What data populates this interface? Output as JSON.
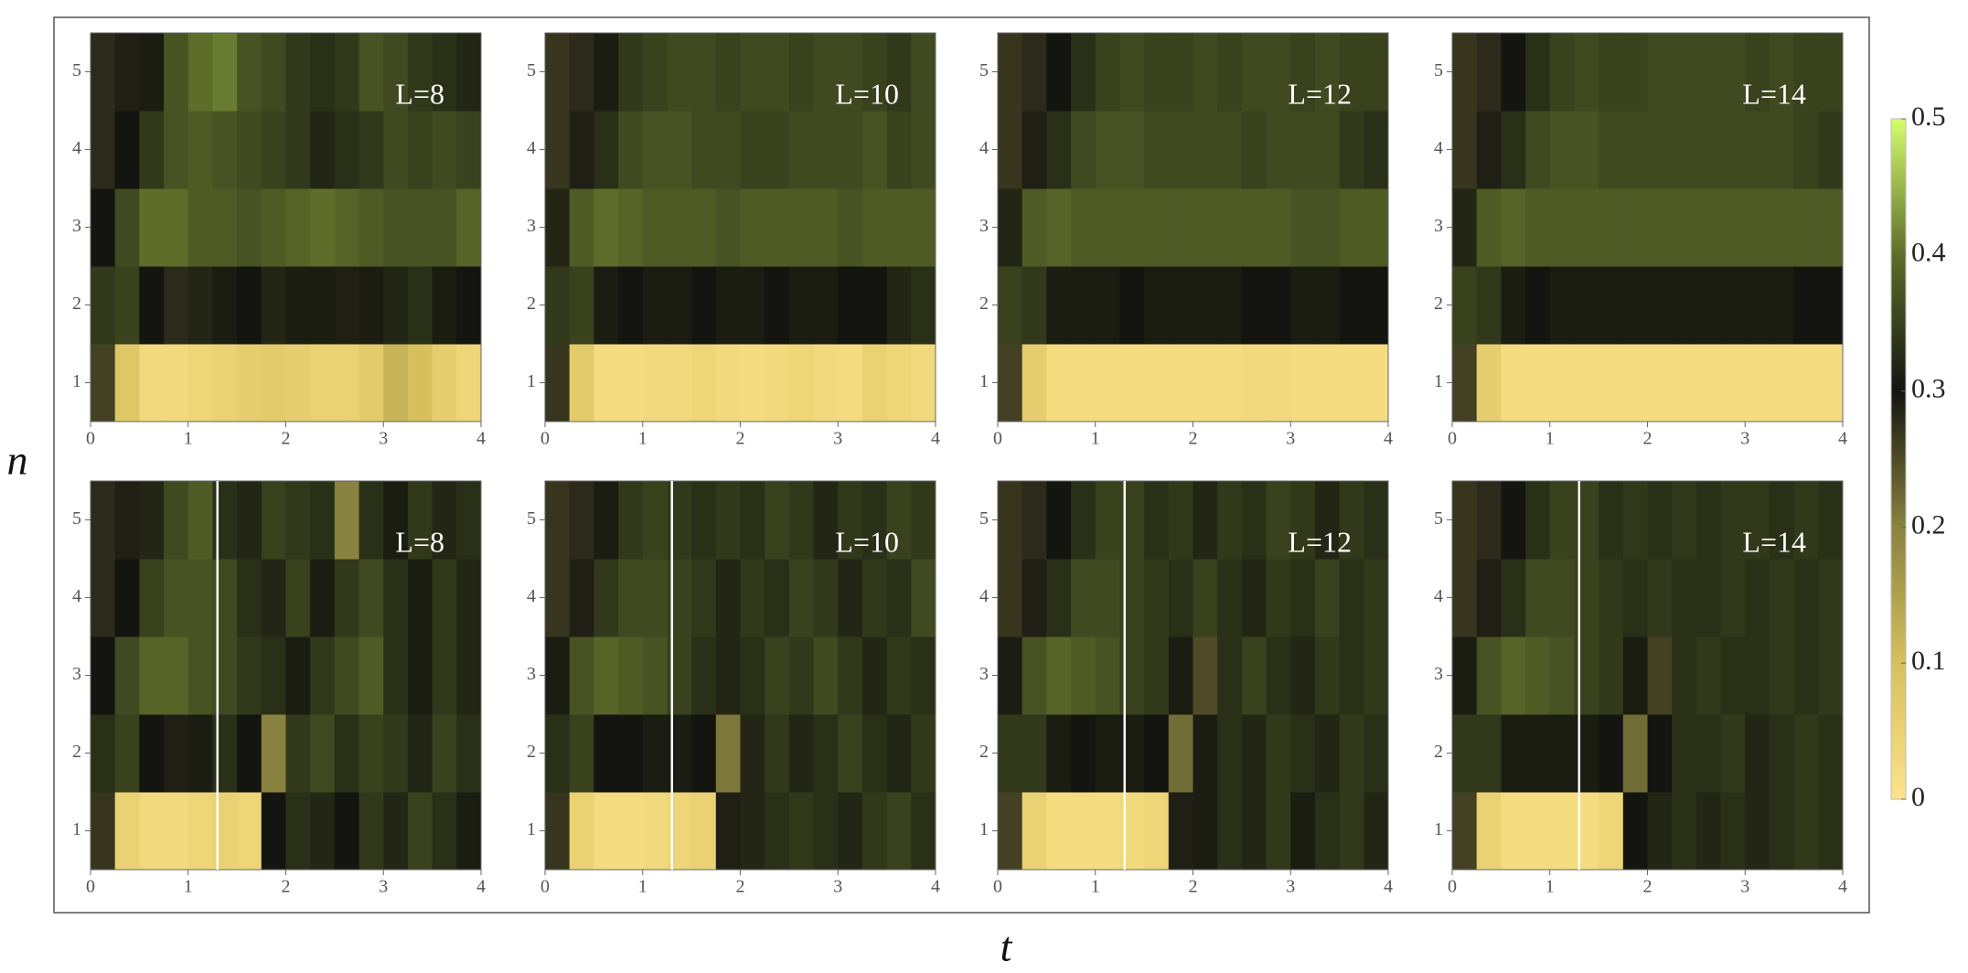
{
  "chart_data": {
    "type": "heatmap",
    "x_label": "t",
    "y_label": "n",
    "x": [
      0,
      0.25,
      0.5,
      0.75,
      1,
      1.25,
      1.5,
      1.75,
      2,
      2.25,
      2.5,
      2.75,
      3,
      3.25,
      3.5,
      3.75,
      4
    ],
    "y": [
      1,
      2,
      3,
      4,
      5
    ],
    "xlim": [
      0,
      4
    ],
    "xticks": [
      0,
      1,
      2,
      3,
      4
    ],
    "ylim": [
      0.5,
      5.5
    ],
    "yticks": [
      1,
      2,
      3,
      4,
      5
    ],
    "colorbar": {
      "zlim": [
        0,
        0.5
      ],
      "ticks": [
        0,
        0.1,
        0.2,
        0.3,
        0.4,
        0.5
      ],
      "colors": [
        "#fde38a",
        "#d6c05e",
        "#8a8240",
        "#141410",
        "#5e6d2a",
        "#d4ff6e"
      ]
    },
    "panels": [
      {
        "label": "L=8",
        "z": [
          [
            0.26,
            0.08,
            0.03,
            0.03,
            0.04,
            0.05,
            0.06,
            0.07,
            0.06,
            0.05,
            0.05,
            0.07,
            0.12,
            0.1,
            0.06,
            0.04
          ],
          [
            0.34,
            0.35,
            0.3,
            0.28,
            0.32,
            0.31,
            0.3,
            0.32,
            0.31,
            0.31,
            0.29,
            0.31,
            0.32,
            0.33,
            0.31,
            0.3
          ],
          [
            0.3,
            0.36,
            0.4,
            0.4,
            0.38,
            0.38,
            0.37,
            0.38,
            0.39,
            0.4,
            0.39,
            0.38,
            0.37,
            0.37,
            0.37,
            0.39
          ],
          [
            0.28,
            0.3,
            0.34,
            0.37,
            0.38,
            0.37,
            0.36,
            0.35,
            0.34,
            0.32,
            0.33,
            0.34,
            0.36,
            0.35,
            0.36,
            0.35
          ],
          [
            0.28,
            0.29,
            0.31,
            0.37,
            0.4,
            0.41,
            0.37,
            0.36,
            0.34,
            0.33,
            0.34,
            0.37,
            0.36,
            0.34,
            0.33,
            0.32
          ]
        ]
      },
      {
        "label": "L=10",
        "z": [
          [
            0.27,
            0.07,
            0.02,
            0.02,
            0.03,
            0.03,
            0.04,
            0.03,
            0.02,
            0.03,
            0.04,
            0.03,
            0.02,
            0.05,
            0.04,
            0.03
          ],
          [
            0.34,
            0.35,
            0.31,
            0.3,
            0.31,
            0.31,
            0.3,
            0.31,
            0.31,
            0.3,
            0.31,
            0.31,
            0.3,
            0.3,
            0.32,
            0.33
          ],
          [
            0.32,
            0.38,
            0.4,
            0.39,
            0.38,
            0.38,
            0.38,
            0.37,
            0.38,
            0.38,
            0.38,
            0.38,
            0.37,
            0.38,
            0.38,
            0.38
          ],
          [
            0.27,
            0.29,
            0.33,
            0.36,
            0.37,
            0.37,
            0.36,
            0.36,
            0.35,
            0.35,
            0.36,
            0.36,
            0.36,
            0.37,
            0.35,
            0.36
          ],
          [
            0.27,
            0.28,
            0.31,
            0.34,
            0.35,
            0.36,
            0.36,
            0.35,
            0.36,
            0.36,
            0.35,
            0.36,
            0.36,
            0.35,
            0.34,
            0.36
          ]
        ]
      },
      {
        "label": "L=12",
        "z": [
          [
            0.26,
            0.06,
            0.02,
            0.02,
            0.02,
            0.02,
            0.02,
            0.02,
            0.02,
            0.02,
            0.03,
            0.03,
            0.02,
            0.02,
            0.02,
            0.02
          ],
          [
            0.35,
            0.34,
            0.31,
            0.31,
            0.31,
            0.3,
            0.31,
            0.31,
            0.31,
            0.31,
            0.3,
            0.3,
            0.31,
            0.31,
            0.3,
            0.3
          ],
          [
            0.32,
            0.38,
            0.39,
            0.38,
            0.38,
            0.38,
            0.38,
            0.38,
            0.38,
            0.38,
            0.38,
            0.38,
            0.37,
            0.37,
            0.38,
            0.38
          ],
          [
            0.27,
            0.29,
            0.33,
            0.36,
            0.37,
            0.37,
            0.36,
            0.36,
            0.36,
            0.36,
            0.35,
            0.36,
            0.36,
            0.36,
            0.34,
            0.33
          ],
          [
            0.27,
            0.28,
            0.3,
            0.33,
            0.35,
            0.36,
            0.35,
            0.35,
            0.36,
            0.35,
            0.36,
            0.36,
            0.35,
            0.36,
            0.35,
            0.35
          ]
        ]
      },
      {
        "label": "L=14",
        "z": [
          [
            0.26,
            0.06,
            0.02,
            0.02,
            0.02,
            0.02,
            0.02,
            0.02,
            0.02,
            0.02,
            0.02,
            0.02,
            0.02,
            0.02,
            0.02,
            0.02
          ],
          [
            0.35,
            0.34,
            0.31,
            0.3,
            0.31,
            0.31,
            0.31,
            0.31,
            0.31,
            0.31,
            0.31,
            0.31,
            0.31,
            0.31,
            0.3,
            0.3
          ],
          [
            0.32,
            0.38,
            0.39,
            0.38,
            0.38,
            0.38,
            0.38,
            0.38,
            0.38,
            0.38,
            0.38,
            0.38,
            0.38,
            0.38,
            0.38,
            0.38
          ],
          [
            0.27,
            0.29,
            0.33,
            0.36,
            0.37,
            0.37,
            0.36,
            0.36,
            0.36,
            0.36,
            0.36,
            0.36,
            0.36,
            0.36,
            0.35,
            0.34
          ],
          [
            0.27,
            0.28,
            0.3,
            0.33,
            0.35,
            0.36,
            0.35,
            0.35,
            0.36,
            0.36,
            0.36,
            0.36,
            0.35,
            0.36,
            0.35,
            0.35
          ]
        ]
      },
      {
        "label": "L=8",
        "vline": 1.3,
        "z": [
          [
            0.27,
            0.05,
            0.03,
            0.03,
            0.04,
            0.05,
            0.04,
            0.3,
            0.33,
            0.32,
            0.3,
            0.34,
            0.32,
            0.35,
            0.33,
            0.31
          ],
          [
            0.33,
            0.35,
            0.3,
            0.29,
            0.31,
            0.33,
            0.3,
            0.2,
            0.34,
            0.36,
            0.33,
            0.35,
            0.34,
            0.32,
            0.35,
            0.33
          ],
          [
            0.3,
            0.36,
            0.39,
            0.39,
            0.37,
            0.36,
            0.34,
            0.33,
            0.31,
            0.34,
            0.36,
            0.38,
            0.33,
            0.31,
            0.34,
            0.32
          ],
          [
            0.28,
            0.3,
            0.35,
            0.37,
            0.37,
            0.36,
            0.33,
            0.32,
            0.35,
            0.31,
            0.34,
            0.36,
            0.33,
            0.31,
            0.34,
            0.32
          ],
          [
            0.28,
            0.29,
            0.32,
            0.36,
            0.38,
            0.33,
            0.32,
            0.35,
            0.34,
            0.33,
            0.2,
            0.33,
            0.31,
            0.34,
            0.32,
            0.33
          ]
        ]
      },
      {
        "label": "L=10",
        "vline": 1.3,
        "z": [
          [
            0.27,
            0.05,
            0.02,
            0.02,
            0.03,
            0.04,
            0.05,
            0.29,
            0.32,
            0.33,
            0.34,
            0.33,
            0.32,
            0.34,
            0.35,
            0.33
          ],
          [
            0.33,
            0.35,
            0.3,
            0.3,
            0.31,
            0.31,
            0.3,
            0.21,
            0.32,
            0.34,
            0.32,
            0.33,
            0.35,
            0.33,
            0.32,
            0.34
          ],
          [
            0.31,
            0.37,
            0.39,
            0.38,
            0.37,
            0.35,
            0.33,
            0.32,
            0.33,
            0.35,
            0.34,
            0.36,
            0.34,
            0.32,
            0.34,
            0.33
          ],
          [
            0.27,
            0.29,
            0.34,
            0.36,
            0.36,
            0.35,
            0.34,
            0.32,
            0.34,
            0.33,
            0.35,
            0.34,
            0.32,
            0.34,
            0.33,
            0.36
          ],
          [
            0.27,
            0.28,
            0.31,
            0.34,
            0.35,
            0.34,
            0.33,
            0.34,
            0.33,
            0.35,
            0.34,
            0.32,
            0.34,
            0.33,
            0.35,
            0.34
          ]
        ]
      },
      {
        "label": "L=12",
        "vline": 1.3,
        "z": [
          [
            0.26,
            0.05,
            0.02,
            0.02,
            0.02,
            0.03,
            0.04,
            0.29,
            0.31,
            0.33,
            0.32,
            0.34,
            0.31,
            0.33,
            0.34,
            0.32
          ],
          [
            0.34,
            0.34,
            0.31,
            0.3,
            0.31,
            0.31,
            0.3,
            0.22,
            0.31,
            0.33,
            0.32,
            0.34,
            0.33,
            0.32,
            0.34,
            0.33
          ],
          [
            0.31,
            0.37,
            0.39,
            0.38,
            0.37,
            0.35,
            0.34,
            0.31,
            0.25,
            0.33,
            0.35,
            0.33,
            0.32,
            0.34,
            0.33,
            0.34
          ],
          [
            0.27,
            0.29,
            0.33,
            0.36,
            0.36,
            0.35,
            0.34,
            0.33,
            0.35,
            0.33,
            0.32,
            0.34,
            0.33,
            0.35,
            0.33,
            0.34
          ],
          [
            0.27,
            0.28,
            0.3,
            0.33,
            0.35,
            0.35,
            0.33,
            0.34,
            0.32,
            0.34,
            0.33,
            0.35,
            0.34,
            0.32,
            0.34,
            0.33
          ]
        ]
      },
      {
        "label": "L=14",
        "vline": 1.3,
        "z": [
          [
            0.26,
            0.05,
            0.02,
            0.02,
            0.02,
            0.02,
            0.04,
            0.3,
            0.32,
            0.33,
            0.32,
            0.33,
            0.32,
            0.33,
            0.34,
            0.33
          ],
          [
            0.34,
            0.34,
            0.31,
            0.31,
            0.31,
            0.31,
            0.3,
            0.22,
            0.3,
            0.33,
            0.33,
            0.34,
            0.32,
            0.33,
            0.34,
            0.33
          ],
          [
            0.31,
            0.37,
            0.39,
            0.38,
            0.37,
            0.35,
            0.34,
            0.31,
            0.26,
            0.33,
            0.34,
            0.33,
            0.33,
            0.34,
            0.33,
            0.34
          ],
          [
            0.27,
            0.29,
            0.33,
            0.36,
            0.36,
            0.35,
            0.34,
            0.33,
            0.34,
            0.33,
            0.33,
            0.34,
            0.33,
            0.34,
            0.33,
            0.34
          ],
          [
            0.27,
            0.28,
            0.3,
            0.33,
            0.35,
            0.35,
            0.33,
            0.34,
            0.33,
            0.34,
            0.33,
            0.34,
            0.34,
            0.33,
            0.34,
            0.33
          ]
        ]
      }
    ]
  }
}
